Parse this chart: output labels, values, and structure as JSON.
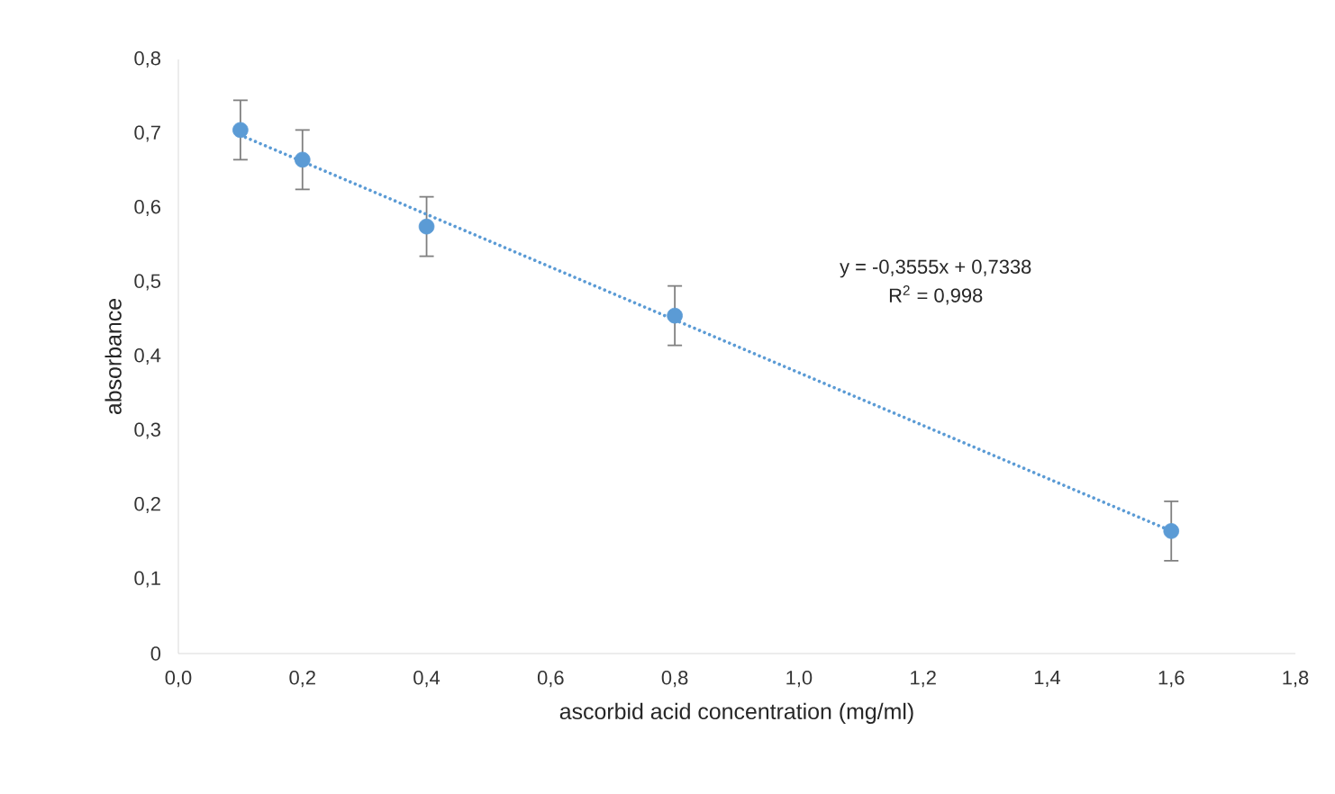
{
  "chart_data": {
    "type": "scatter",
    "xlabel": "ascorbid acid concentration (mg/ml)",
    "ylabel": "absorbance",
    "xlim": [
      0,
      1.8
    ],
    "ylim": [
      0,
      0.8
    ],
    "xticks": [
      {
        "value": 0,
        "label": "0,0"
      },
      {
        "value": 0.2,
        "label": "0,2"
      },
      {
        "value": 0.4,
        "label": "0,4"
      },
      {
        "value": 0.6,
        "label": "0,6"
      },
      {
        "value": 0.8,
        "label": "0,8"
      },
      {
        "value": 1.0,
        "label": "1,0"
      },
      {
        "value": 1.2,
        "label": "1,2"
      },
      {
        "value": 1.4,
        "label": "1,4"
      },
      {
        "value": 1.6,
        "label": "1,6"
      },
      {
        "value": 1.8,
        "label": "1,8"
      }
    ],
    "yticks": [
      0,
      {
        "value": 0.1,
        "label": "0,1"
      },
      {
        "value": 0.2,
        "label": "0,2"
      },
      {
        "value": 0.3,
        "label": "0,3"
      },
      {
        "value": 0.4,
        "label": "0,4"
      },
      {
        "value": 0.5,
        "label": "0,5"
      },
      {
        "value": 0.6,
        "label": "0,6"
      },
      {
        "value": 0.7,
        "label": "0,7"
      },
      {
        "value": 0.8,
        "label": "0,8"
      }
    ],
    "marker": "circle",
    "grid": false,
    "series": [
      {
        "color": "#5b9bd5",
        "x": [
          0.1,
          0.2,
          0.4,
          0.8,
          1.6
        ],
        "values": [
          0.705,
          0.665,
          0.575,
          0.455,
          0.165
        ],
        "errors": [
          0.04,
          0.04,
          0.04,
          0.04,
          0.04
        ]
      },
      {
        "type": "line",
        "line_style": "dotted",
        "marker": "none",
        "color": "#5b9bd5",
        "x": [
          0.1,
          1.6
        ],
        "values": [
          0.698,
          0.165
        ]
      }
    ],
    "annotations": [
      "y = -0,3555x + 0,7338",
      "R$^{2}$ = 0,998"
    ]
  }
}
